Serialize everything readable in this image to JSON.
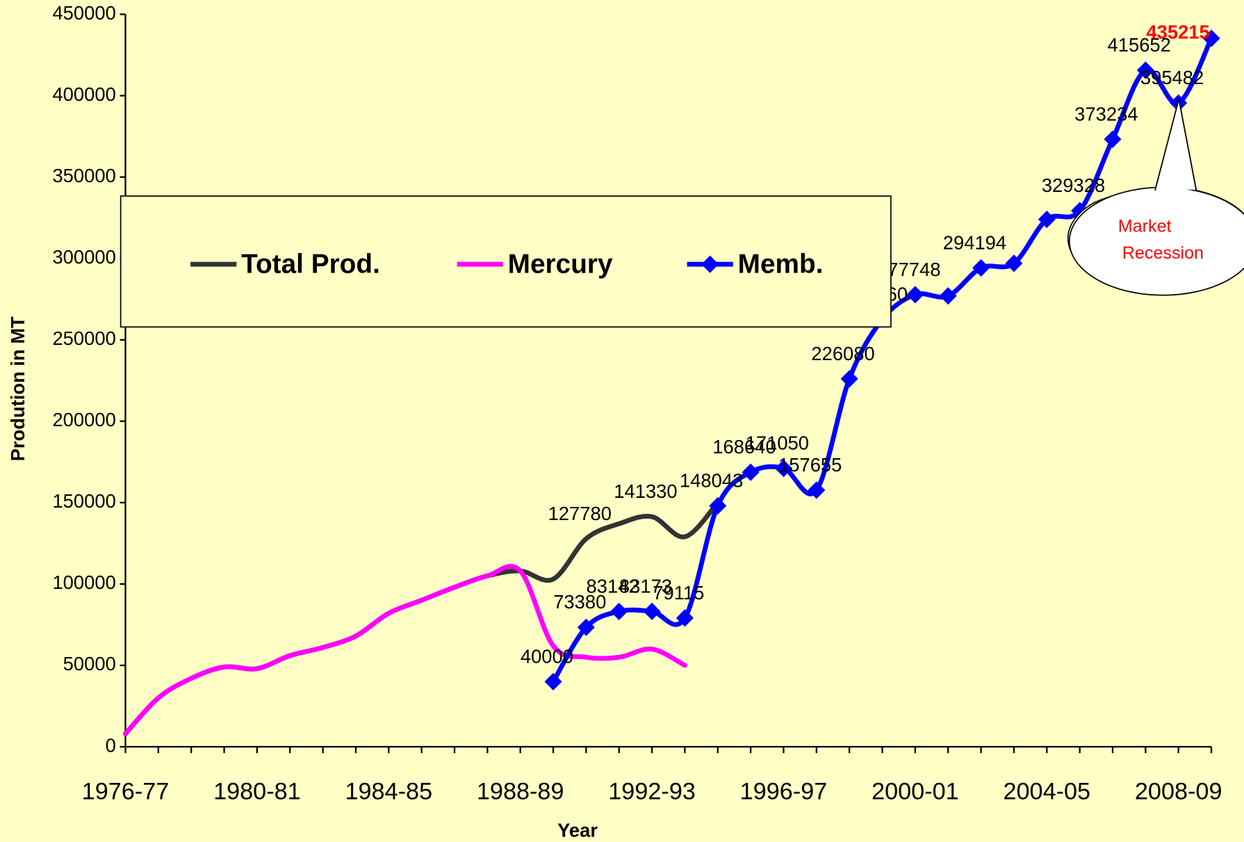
{
  "chart_data": {
    "type": "line",
    "x_label": "Year",
    "y_label": "Prodution in MT",
    "categories": [
      "1976-77",
      null,
      null,
      null,
      "1980-81",
      null,
      null,
      null,
      "1984-85",
      null,
      null,
      null,
      "1988-89",
      null,
      null,
      null,
      "1992-93",
      null,
      null,
      null,
      "1996-97",
      null,
      null,
      null,
      "2000-01",
      null,
      null,
      null,
      "2004-05",
      null,
      null,
      null,
      "2008-09",
      null
    ],
    "ylim": [
      0,
      450000
    ],
    "yticks": [
      0,
      50000,
      100000,
      150000,
      200000,
      250000,
      300000,
      350000,
      400000,
      450000
    ],
    "series": [
      {
        "name": "Total Prod.",
        "color": "#333333",
        "marker": "none",
        "values": [
          8000,
          30000,
          42000,
          49000,
          48000,
          56000,
          61000,
          68000,
          82000,
          90000,
          98000,
          105000,
          108000,
          103000,
          127780,
          137000,
          141330,
          129000,
          150000,
          null,
          null,
          null,
          null,
          null,
          null,
          null,
          null,
          null,
          null,
          null,
          null,
          null,
          null,
          null
        ],
        "value_labels": [
          null,
          null,
          null,
          null,
          null,
          null,
          null,
          null,
          null,
          null,
          null,
          null,
          null,
          null,
          "127780",
          null,
          "141330",
          null,
          null,
          null,
          null,
          null,
          null,
          null,
          null,
          null,
          null,
          null,
          null,
          null,
          null,
          null,
          null,
          null
        ]
      },
      {
        "name": "Mercury",
        "color": "#ff00ff",
        "marker": "none",
        "values": [
          8000,
          30000,
          42000,
          49000,
          48000,
          56000,
          61000,
          68000,
          82000,
          90000,
          98000,
          105000,
          108000,
          62000,
          55000,
          55000,
          60000,
          50000,
          null,
          null,
          null,
          null,
          null,
          null,
          null,
          null,
          null,
          null,
          null,
          null,
          null,
          null,
          null,
          null
        ]
      },
      {
        "name": "Memb.",
        "color": "#0000ff",
        "marker": "diamond",
        "values": [
          null,
          null,
          null,
          null,
          null,
          null,
          null,
          null,
          null,
          null,
          null,
          null,
          null,
          40000,
          73380,
          83142,
          83173,
          79115,
          148043,
          168640,
          171050,
          157655,
          226080,
          262560,
          277748,
          277000,
          294194,
          297000,
          324000,
          329328,
          373234,
          415652,
          395482,
          435215
        ],
        "value_labels": [
          null,
          null,
          null,
          null,
          null,
          null,
          null,
          null,
          null,
          null,
          null,
          null,
          null,
          "40000",
          "73380",
          "83142",
          "83173",
          "79115",
          "148043",
          "168640",
          "171050",
          "157655",
          "226080",
          "262560",
          "277748",
          null,
          "294194",
          null,
          null,
          "329328",
          "373234",
          "415652",
          "395482",
          "435215"
        ]
      }
    ],
    "annotation": "Market Recession"
  }
}
